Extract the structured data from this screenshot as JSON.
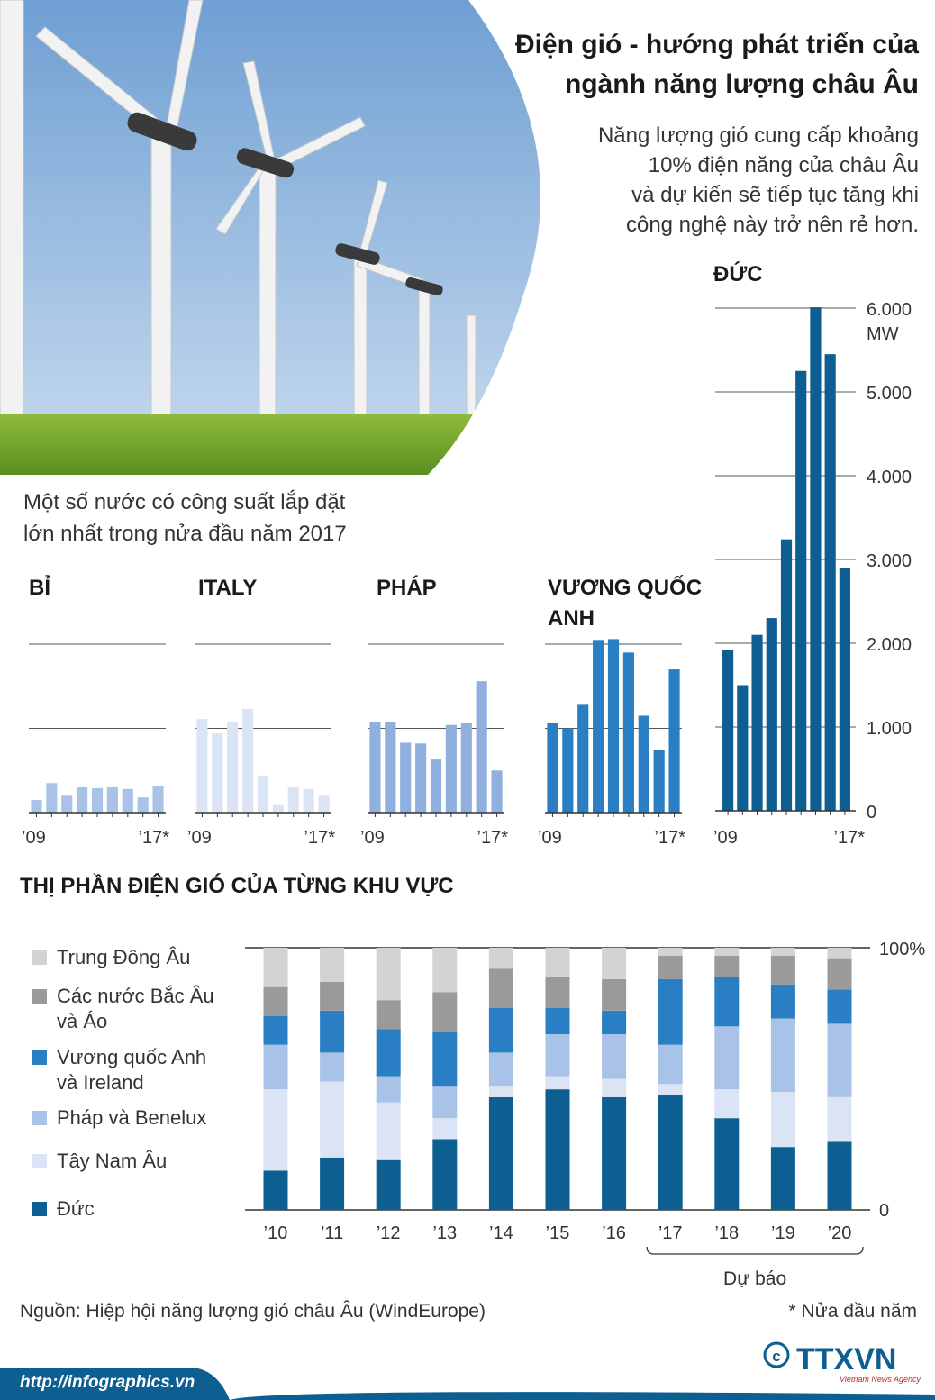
{
  "header": {
    "title_line1": "Điện gió - hướng phát triển của",
    "title_line2": "ngành năng lượng châu Âu",
    "subtitle_lines": [
      "Năng lượng gió cung cấp khoảng",
      "10% điện năng của châu Âu",
      "và dự kiến sẽ tiếp tục tăng khi",
      "công nghệ này trở nên rẻ hơn."
    ]
  },
  "intro_lines": [
    "Một số nước có công suất lắp đặt",
    "lớn nhất trong nửa đầu năm 2017"
  ],
  "section_title": "THỊ PHẦN ĐIỆN GIÓ CỦA TỪNG KHU VỰC",
  "source": "Nguồn: Hiệp hội năng lượng gió châu Âu (WindEurope)",
  "footnote": "* Nửa đầu năm",
  "url": "http://infographics.vn",
  "logo": {
    "text": "TTXVN",
    "sub": "Vietnam News Agency",
    "copyright": "©"
  },
  "colors": {
    "bi": "#a9c3e8",
    "italy": "#dbe4f4",
    "phap": "#8fb0df",
    "uk": "#2a7fc4",
    "duc": "#0d5e91",
    "grid": "#555555",
    "footer": "#0d5e91"
  },
  "chart_data": [
    {
      "type": "bar",
      "name": "BỈ",
      "categories": [
        "2009",
        "2010",
        "2011",
        "2012",
        "2013",
        "2014",
        "2015",
        "2016",
        "2017"
      ],
      "values": [
        150,
        350,
        200,
        300,
        290,
        300,
        280,
        180,
        310
      ],
      "ylim": [
        0,
        2000
      ],
      "x_tick_labels": [
        "’09",
        "’17*"
      ]
    },
    {
      "type": "bar",
      "name": "ITALY",
      "categories": [
        "2009",
        "2010",
        "2011",
        "2012",
        "2013",
        "2014",
        "2015",
        "2016",
        "2017"
      ],
      "values": [
        1110,
        940,
        1080,
        1230,
        440,
        100,
        300,
        280,
        200
      ],
      "ylim": [
        0,
        2000
      ],
      "x_tick_labels": [
        "’09",
        "’17*"
      ]
    },
    {
      "type": "bar",
      "name": "PHÁP",
      "categories": [
        "2009",
        "2010",
        "2011",
        "2012",
        "2013",
        "2014",
        "2015",
        "2016",
        "2017"
      ],
      "values": [
        1080,
        1080,
        830,
        820,
        630,
        1040,
        1070,
        1560,
        500
      ],
      "ylim": [
        0,
        2000
      ],
      "x_tick_labels": [
        "’09",
        "’17*"
      ]
    },
    {
      "type": "bar",
      "name_lines": [
        "VƯƠNG QUỐC",
        "ANH"
      ],
      "categories": [
        "2009",
        "2010",
        "2011",
        "2012",
        "2013",
        "2014",
        "2015",
        "2016",
        "2017"
      ],
      "values": [
        1070,
        1000,
        1290,
        2050,
        2060,
        1900,
        1150,
        740,
        1700
      ],
      "ylim": [
        0,
        2000
      ],
      "x_tick_labels": [
        "’09",
        "’17*"
      ]
    },
    {
      "type": "bar",
      "name": "ĐỨC",
      "categories": [
        "2009",
        "2010",
        "2011",
        "2012",
        "2013",
        "2014",
        "2015",
        "2016",
        "2017"
      ],
      "values": [
        1920,
        1500,
        2100,
        2300,
        3240,
        5250,
        6010,
        5450,
        2900
      ],
      "ylim": [
        0,
        6000
      ],
      "y_ticks": [
        "0",
        "1.000",
        "2.000",
        "3.000",
        "4.000",
        "5.000",
        "6.000"
      ],
      "y_unit": "MW",
      "x_tick_labels": [
        "’09",
        "’17*"
      ]
    },
    {
      "type": "bar",
      "stacked": true,
      "percent": true,
      "categories": [
        "’10",
        "’11",
        "’12",
        "’13",
        "’14",
        "’15",
        "’16",
        "’17",
        "’18",
        "’19",
        "’20"
      ],
      "y_ticks": [
        "0",
        "100%"
      ],
      "forecast_label": "Dự báo",
      "forecast_categories": [
        "’17",
        "’18",
        "’19",
        "’20"
      ],
      "series": [
        {
          "name": "Đức",
          "color": "#0d5e91",
          "values": [
            15,
            20,
            19,
            27,
            43,
            46,
            43,
            44,
            35,
            24,
            26
          ]
        },
        {
          "name": "Tây Nam Âu",
          "color": "#dbe4f4",
          "values": [
            31,
            29,
            22,
            8,
            4,
            5,
            7,
            4,
            11,
            21,
            17
          ]
        },
        {
          "name": "Pháp và Benelux",
          "color": "#a9c3e8",
          "values": [
            17,
            11,
            10,
            12,
            13,
            16,
            17,
            15,
            24,
            28,
            28
          ]
        },
        {
          "name": "Vương quốc Anh\nvà Ireland",
          "color": "#2a7fc4",
          "values": [
            11,
            16,
            18,
            21,
            17,
            10,
            9,
            25,
            19,
            13,
            13
          ]
        },
        {
          "name": "Các nước Bắc Âu\nvà Áo",
          "color": "#9a9a9a",
          "values": [
            11,
            11,
            11,
            15,
            15,
            12,
            12,
            9,
            8,
            11,
            12
          ]
        },
        {
          "name": "Trung Đông Âu",
          "color": "#d3d3d3",
          "values": [
            15,
            13,
            20,
            17,
            8,
            11,
            12,
            3,
            3,
            3,
            4
          ]
        }
      ]
    }
  ]
}
